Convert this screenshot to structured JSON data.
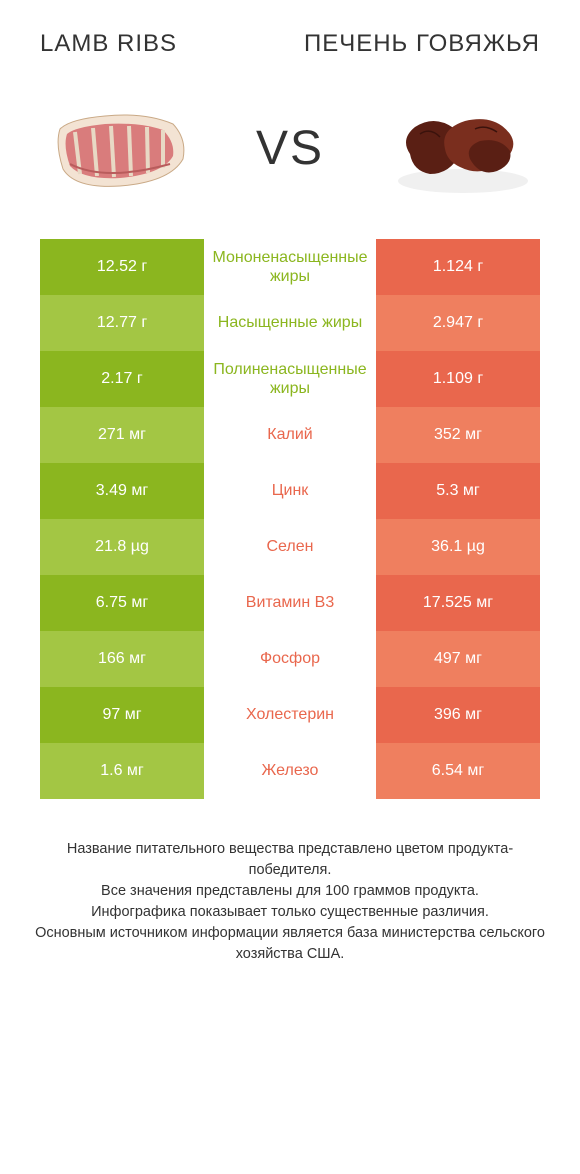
{
  "header": {
    "left_title": "LAMB RIBS",
    "right_title": "ПЕЧЕНЬ ГОВЯЖЬЯ",
    "vs_label": "VS"
  },
  "colors": {
    "green_dark": "#8bb61f",
    "green_light": "#a3c644",
    "orange_dark": "#e9674d",
    "orange_light": "#ef7f5f",
    "label_green": "#8bb61f",
    "label_orange": "#e9674d",
    "text": "#333333",
    "background": "#ffffff"
  },
  "meat_images": {
    "ribs": {
      "flesh_color": "#d97c7c",
      "fat_color": "#f3e3d3",
      "bone_color": "#e8d9c5"
    },
    "liver": {
      "main_color": "#5a1f14",
      "highlight_color": "#7a2e1e",
      "plate_color": "#f0f0f0"
    }
  },
  "table": {
    "rows": [
      {
        "left": "12.52 г",
        "label": "Мононенасыщенные жиры",
        "right": "1.124 г",
        "winner": "left"
      },
      {
        "left": "12.77 г",
        "label": "Насыщенные жиры",
        "right": "2.947 г",
        "winner": "left"
      },
      {
        "left": "2.17 г",
        "label": "Полиненасыщенные жиры",
        "right": "1.109 г",
        "winner": "left"
      },
      {
        "left": "271 мг",
        "label": "Калий",
        "right": "352 мг",
        "winner": "right"
      },
      {
        "left": "3.49 мг",
        "label": "Цинк",
        "right": "5.3 мг",
        "winner": "right"
      },
      {
        "left": "21.8 µg",
        "label": "Селен",
        "right": "36.1 µg",
        "winner": "right"
      },
      {
        "left": "6.75 мг",
        "label": "Витамин B3",
        "right": "17.525 мг",
        "winner": "right"
      },
      {
        "left": "166 мг",
        "label": "Фосфор",
        "right": "497 мг",
        "winner": "right"
      },
      {
        "left": "97 мг",
        "label": "Холестерин",
        "right": "396 мг",
        "winner": "right"
      },
      {
        "left": "1.6 мг",
        "label": "Железо",
        "right": "6.54 мг",
        "winner": "right"
      }
    ]
  },
  "footer": {
    "line1": "Название питательного вещества представлено цветом продукта-победителя.",
    "line2": "Все значения представлены для 100 граммов продукта.",
    "line3": "Инфографика показывает только существенные различия.",
    "line4": "Основным источником информации является база министерства сельского хозяйства США."
  }
}
